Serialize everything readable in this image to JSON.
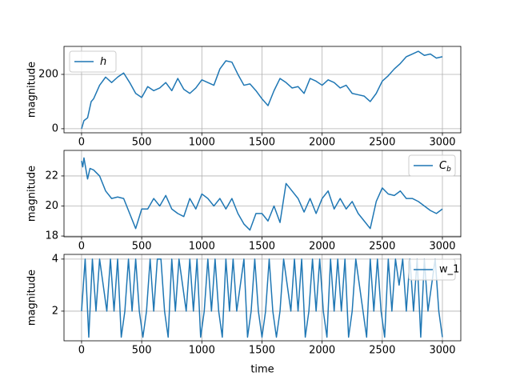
{
  "chart_data": [
    {
      "type": "line",
      "ylabel": "magnitude",
      "xlim": [
        -146,
        3153
      ],
      "ylim": [
        -15,
        303
      ],
      "xticks": [
        0,
        500,
        1000,
        1500,
        2000,
        2500,
        3000
      ],
      "yticks": [
        0,
        200
      ],
      "grid": true,
      "legend": "upper left",
      "x": [
        0,
        20,
        50,
        80,
        100,
        150,
        200,
        250,
        300,
        350,
        400,
        450,
        500,
        550,
        600,
        650,
        700,
        750,
        800,
        850,
        900,
        950,
        1000,
        1050,
        1100,
        1150,
        1200,
        1250,
        1300,
        1350,
        1400,
        1450,
        1500,
        1550,
        1600,
        1650,
        1700,
        1750,
        1800,
        1850,
        1900,
        1950,
        2000,
        2050,
        2100,
        2150,
        2200,
        2250,
        2300,
        2350,
        2400,
        2450,
        2500,
        2550,
        2600,
        2650,
        2700,
        2750,
        2800,
        2850,
        2900,
        2950,
        3000
      ],
      "series": [
        {
          "name": "h",
          "math": true,
          "color": "#1f77b4",
          "values": [
            0,
            30,
            40,
            100,
            110,
            160,
            190,
            170,
            190,
            205,
            170,
            130,
            115,
            155,
            140,
            150,
            170,
            140,
            185,
            145,
            130,
            150,
            180,
            170,
            160,
            220,
            250,
            245,
            200,
            160,
            165,
            140,
            110,
            85,
            140,
            185,
            170,
            150,
            155,
            130,
            185,
            175,
            160,
            180,
            170,
            150,
            160,
            130,
            125,
            120,
            100,
            130,
            175,
            195,
            220,
            240,
            265,
            275,
            285,
            270,
            275,
            260,
            265
          ]
        }
      ]
    },
    {
      "type": "line",
      "ylabel": "magnitude",
      "xlim": [
        -146,
        3153
      ],
      "ylim": [
        17.95,
        23.7
      ],
      "xticks": [
        0,
        500,
        1000,
        1500,
        2000,
        2500,
        3000
      ],
      "yticks": [
        18,
        20,
        22
      ],
      "grid": true,
      "legend": "upper right",
      "x": [
        0,
        10,
        20,
        50,
        70,
        100,
        150,
        200,
        250,
        300,
        350,
        400,
        450,
        500,
        550,
        600,
        650,
        700,
        750,
        800,
        850,
        900,
        950,
        1000,
        1050,
        1100,
        1150,
        1200,
        1250,
        1300,
        1350,
        1400,
        1450,
        1500,
        1550,
        1600,
        1650,
        1700,
        1750,
        1800,
        1850,
        1900,
        1950,
        2000,
        2050,
        2100,
        2150,
        2200,
        2250,
        2300,
        2350,
        2400,
        2450,
        2500,
        2550,
        2600,
        2650,
        2700,
        2750,
        2800,
        2850,
        2900,
        2950,
        3000
      ],
      "series": [
        {
          "name": "C_b",
          "math": true,
          "color": "#1f77b4",
          "values": [
            23.0,
            22.6,
            23.2,
            21.8,
            22.5,
            22.4,
            22.0,
            21.0,
            20.5,
            20.6,
            20.5,
            19.5,
            18.5,
            19.8,
            19.8,
            20.5,
            20.0,
            20.7,
            19.8,
            19.5,
            19.3,
            20.5,
            19.8,
            20.8,
            20.5,
            20.0,
            20.5,
            19.8,
            20.5,
            19.5,
            18.8,
            18.4,
            19.5,
            19.5,
            19.0,
            20.0,
            18.9,
            21.5,
            21.0,
            20.5,
            19.6,
            20.5,
            19.5,
            20.5,
            21.0,
            19.8,
            20.5,
            19.8,
            20.3,
            19.5,
            19.0,
            18.5,
            20.3,
            21.2,
            20.8,
            20.7,
            21.0,
            20.5,
            20.5,
            20.3,
            20.0,
            19.7,
            19.5,
            19.8
          ]
        }
      ]
    },
    {
      "type": "line",
      "ylabel": "magnitude",
      "xlabel": "time",
      "xlim": [
        -146,
        3153
      ],
      "ylim": [
        0.86,
        4.18
      ],
      "xticks": [
        0,
        500,
        1000,
        1500,
        2000,
        2500,
        3000
      ],
      "yticks": [
        2,
        4
      ],
      "grid": true,
      "legend": "upper right",
      "x": [
        0,
        30,
        60,
        90,
        120,
        150,
        180,
        210,
        240,
        270,
        300,
        330,
        360,
        390,
        420,
        450,
        480,
        510,
        540,
        570,
        600,
        630,
        660,
        690,
        720,
        750,
        780,
        810,
        840,
        870,
        900,
        930,
        960,
        990,
        1020,
        1050,
        1080,
        1110,
        1140,
        1170,
        1200,
        1230,
        1260,
        1290,
        1320,
        1350,
        1380,
        1410,
        1440,
        1470,
        1500,
        1530,
        1560,
        1590,
        1620,
        1650,
        1680,
        1710,
        1740,
        1770,
        1800,
        1830,
        1860,
        1890,
        1920,
        1950,
        1980,
        2010,
        2040,
        2070,
        2100,
        2130,
        2160,
        2190,
        2220,
        2250,
        2280,
        2310,
        2340,
        2370,
        2400,
        2430,
        2460,
        2490,
        2520,
        2550,
        2580,
        2610,
        2640,
        2670,
        2700,
        2730,
        2760,
        2790,
        2820,
        2850,
        2880,
        2910,
        2940,
        2970,
        3000
      ],
      "series": [
        {
          "name": "w_1",
          "color": "#1f77b4",
          "values": [
            2,
            4,
            1,
            4,
            2,
            4,
            3,
            2,
            4,
            2,
            4,
            1,
            2,
            4,
            2,
            4,
            2,
            1,
            2,
            4,
            2,
            4,
            4,
            2,
            1,
            4,
            2,
            4,
            3,
            2,
            4,
            2,
            4,
            1,
            2,
            4,
            2,
            4,
            2,
            1,
            4,
            2,
            4,
            2,
            3,
            4,
            1,
            2,
            4,
            2,
            1,
            2,
            4,
            2,
            1,
            2,
            4,
            3,
            2,
            4,
            2,
            4,
            1,
            2,
            4,
            2,
            4,
            2,
            1,
            4,
            2,
            4,
            2,
            4,
            1,
            2,
            4,
            3,
            2,
            1,
            4,
            2,
            4,
            2,
            1,
            4,
            2,
            4,
            3,
            4,
            2,
            4,
            2,
            4,
            1,
            4,
            2,
            3,
            4,
            2,
            1
          ]
        }
      ]
    }
  ]
}
